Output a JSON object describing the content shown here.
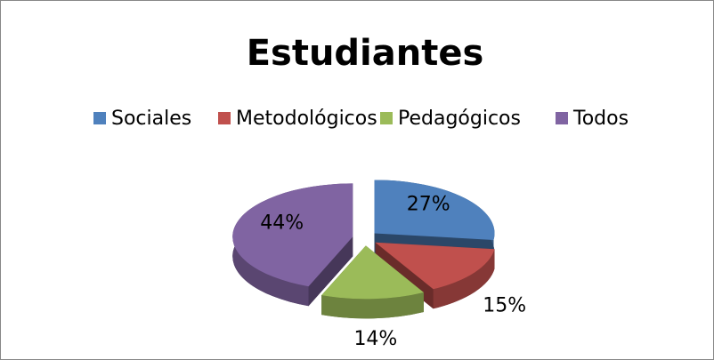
{
  "chart_data": {
    "type": "pie3d",
    "title": "Estudiantes",
    "categories": [
      "Sociales",
      "Metodológicos",
      "Pedagógicos",
      "Todos"
    ],
    "values": [
      27,
      15,
      14,
      44
    ],
    "value_labels": [
      "27%",
      "15%",
      "14%",
      "44%"
    ],
    "colors": [
      "#4f81bd",
      "#c0504d",
      "#9bbb59",
      "#8064a2"
    ],
    "legend": "top"
  }
}
